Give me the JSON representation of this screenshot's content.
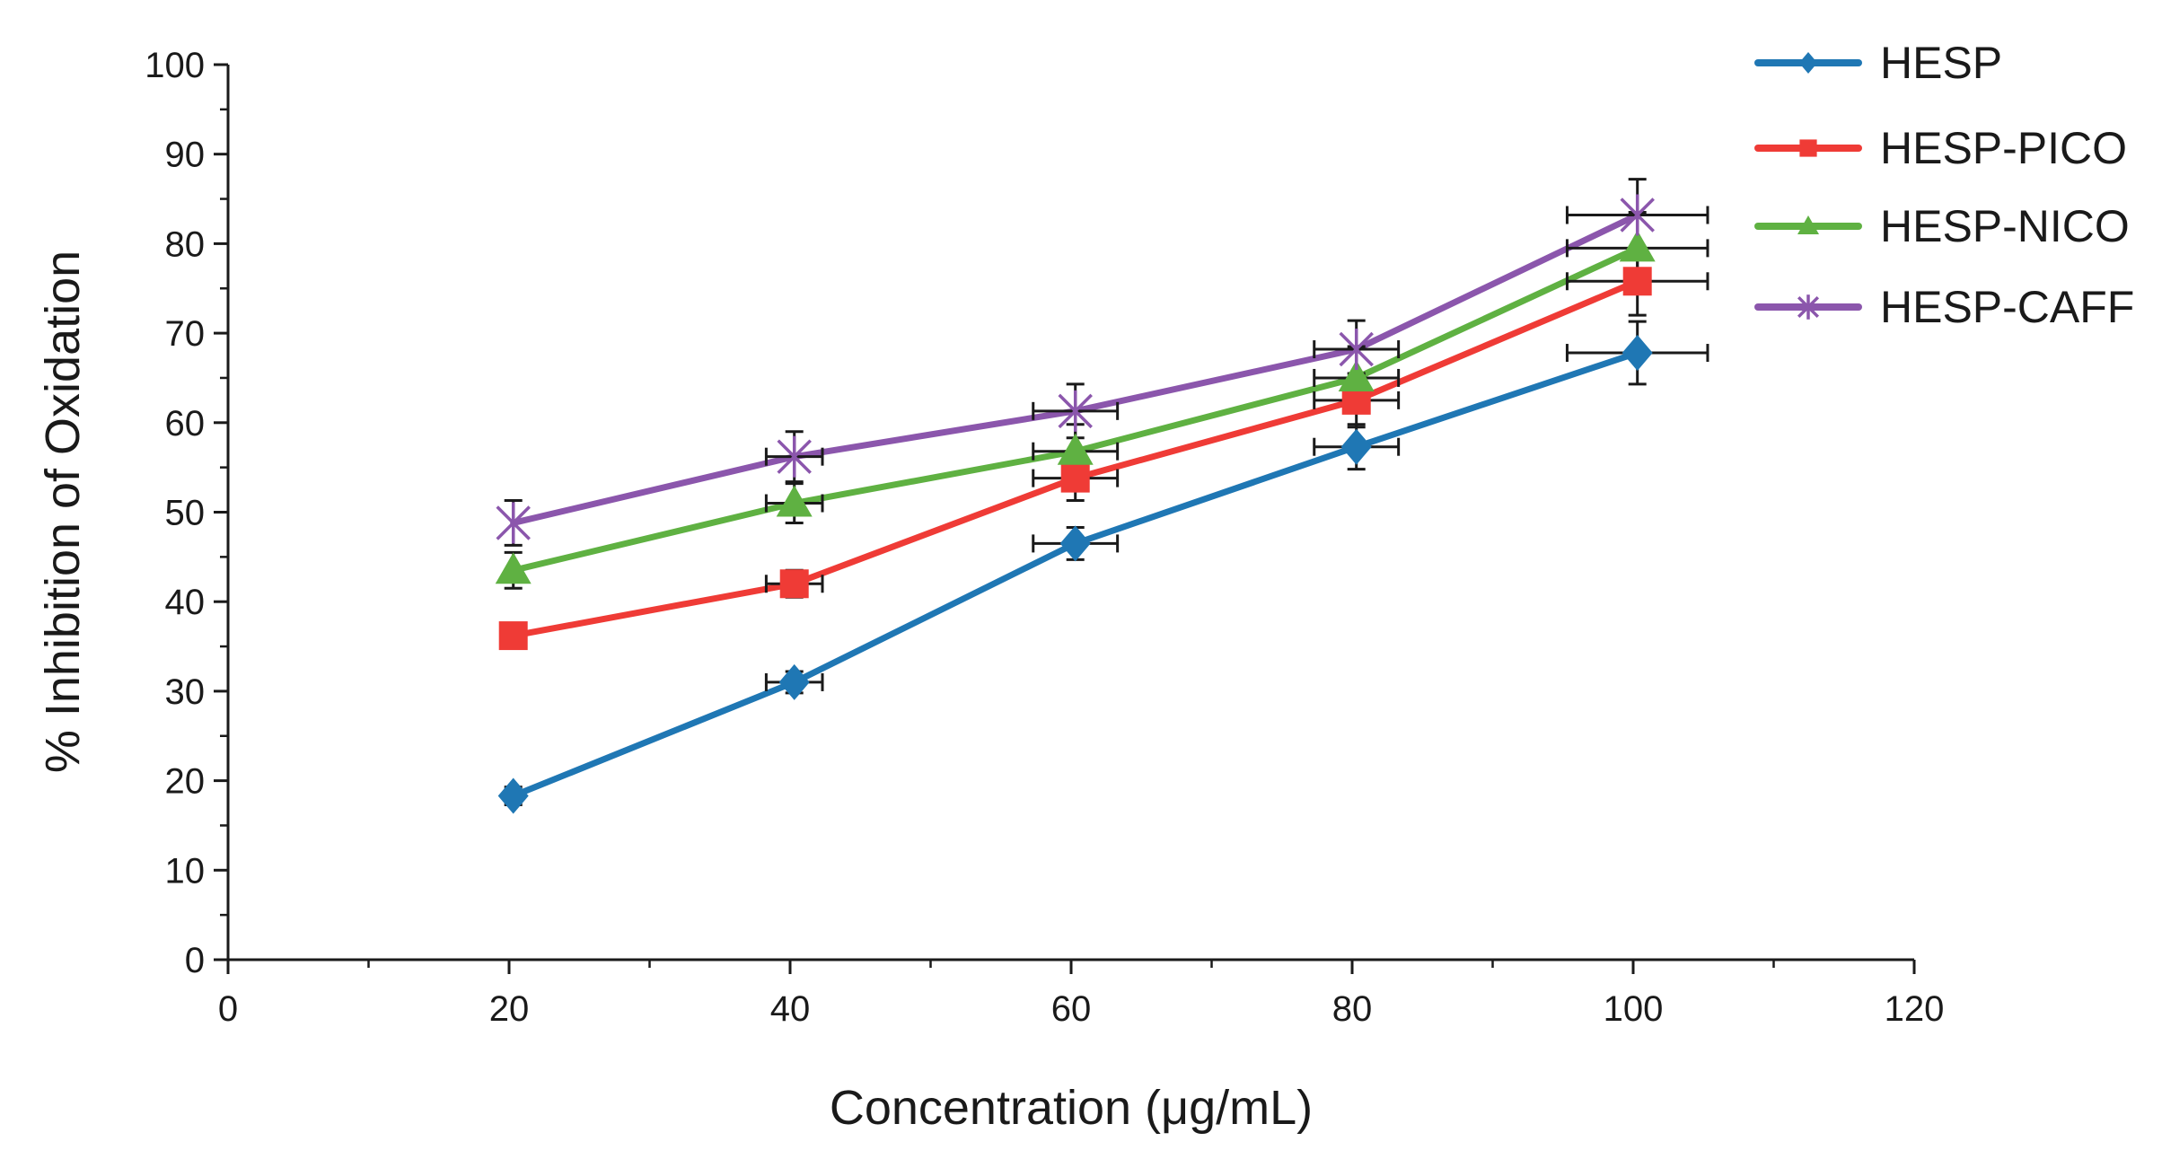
{
  "chart_data": {
    "type": "line",
    "title": "",
    "xlabel": "Concentration (μg/mL)",
    "ylabel": "% Inhibition of Oxidation",
    "xlim": [
      0,
      120
    ],
    "ylim": [
      0,
      100
    ],
    "xticks": [
      "0",
      "20",
      "40",
      "60",
      "80",
      "100",
      "120"
    ],
    "yticks": [
      "0",
      "10",
      "20",
      "30",
      "40",
      "50",
      "60",
      "70",
      "80",
      "90",
      "100"
    ],
    "grid": false,
    "legend_position": "top-right",
    "x": [
      20,
      40,
      60,
      80,
      100
    ],
    "series": [
      {
        "name": "HESP",
        "color": "#1f77b4",
        "marker": "diamond",
        "values": [
          18.3,
          31.0,
          46.5,
          57.3,
          67.8
        ],
        "y_error": [
          1.0,
          1.2,
          1.8,
          2.5,
          3.5
        ],
        "x_error": [
          0,
          2,
          3,
          3,
          5
        ]
      },
      {
        "name": "HESP-PICO",
        "color": "#ef3b36",
        "marker": "square",
        "values": [
          36.2,
          42.0,
          53.8,
          62.5,
          75.8
        ],
        "y_error": [
          1.0,
          1.5,
          2.5,
          3.0,
          3.8
        ],
        "x_error": [
          0,
          2,
          3,
          3,
          5
        ]
      },
      {
        "name": "HESP-NICO",
        "color": "#5fb142",
        "marker": "triangle",
        "values": [
          43.5,
          51.0,
          56.8,
          65.0,
          79.5
        ],
        "y_error": [
          2.0,
          2.2,
          3.0,
          3.5,
          4.0
        ],
        "x_error": [
          0,
          2,
          3,
          3,
          5
        ]
      },
      {
        "name": "HESP-CAFF",
        "color": "#8b56ac",
        "marker": "asterisk",
        "values": [
          48.8,
          56.2,
          61.3,
          68.2,
          83.2
        ],
        "y_error": [
          2.5,
          2.8,
          3.0,
          3.2,
          4.0
        ],
        "x_error": [
          0,
          2,
          3,
          3,
          5
        ]
      }
    ]
  }
}
